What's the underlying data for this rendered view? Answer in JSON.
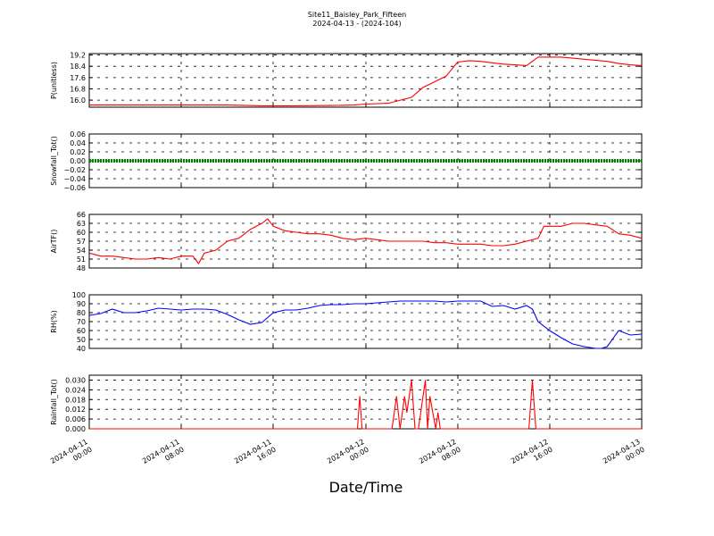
{
  "title": "Site11_Baisley_Park_Fifteen",
  "subtitle": "2024-04-13 - (2024-104)",
  "xlabel": "Date/Time",
  "x_ticks": [
    "2024-04-11\n00:00",
    "2024-04-11\n08:00",
    "2024-04-11\n16:00",
    "2024-04-12\n00:00",
    "2024-04-12\n08:00",
    "2024-04-12\n16:00",
    "2024-04-13\n00:00"
  ],
  "chart_data": [
    {
      "type": "line",
      "ylabel": "P(unitless)",
      "ylim": [
        15.5,
        19.3
      ],
      "yticks": [
        "16.0",
        "16.8",
        "17.6",
        "18.4",
        "19.2"
      ],
      "color": "#ff0000",
      "x_hours": [
        0,
        6,
        12,
        15,
        18,
        21,
        23,
        24,
        26,
        28,
        29,
        31,
        32,
        33,
        34,
        35,
        36,
        37,
        38,
        39,
        41,
        43,
        45,
        46,
        47,
        48
      ],
      "values": [
        15.65,
        15.65,
        15.65,
        15.6,
        15.6,
        15.62,
        15.65,
        15.72,
        15.78,
        16.2,
        16.9,
        17.7,
        18.7,
        18.8,
        18.75,
        18.65,
        18.55,
        18.5,
        18.45,
        19.05,
        19.05,
        18.9,
        18.75,
        18.6,
        18.5,
        18.45
      ]
    },
    {
      "type": "line",
      "ylabel": "Snowfall_Tot()",
      "ylim": [
        -0.06,
        0.06
      ],
      "yticks": [
        "−0.06",
        "−0.04",
        "−0.02",
        "0.00",
        "0.02",
        "0.04",
        "0.06"
      ],
      "color": "#008000",
      "x_hours": [
        0,
        48
      ],
      "values": [
        0.0,
        0.0
      ]
    },
    {
      "type": "line",
      "ylabel": "AirTF()",
      "ylim": [
        48,
        66
      ],
      "yticks": [
        "48",
        "51",
        "54",
        "57",
        "60",
        "63",
        "66"
      ],
      "color": "#ff0000",
      "x_hours": [
        0,
        1,
        2,
        3,
        4,
        5,
        6,
        7,
        8,
        9,
        9.5,
        10,
        11,
        12,
        13,
        14,
        15,
        15.5,
        16,
        17,
        18,
        19,
        20,
        21,
        22,
        23,
        24,
        25,
        26,
        27,
        28,
        29,
        30,
        31,
        32,
        33,
        34,
        35,
        36,
        37,
        38,
        39,
        39.5,
        40,
        41,
        42,
        43,
        44,
        45,
        46,
        47,
        48
      ],
      "values": [
        53,
        52,
        52,
        51.5,
        51,
        51,
        51.5,
        51,
        52,
        52,
        49.5,
        53,
        54,
        57,
        58,
        61,
        63,
        64.5,
        62,
        60.5,
        60,
        59.5,
        59.5,
        59,
        58,
        57.5,
        58,
        57.5,
        57,
        57,
        57,
        57,
        56.5,
        56.5,
        56,
        56,
        56,
        55.5,
        55.5,
        56,
        57,
        58,
        62,
        62,
        62,
        63,
        63,
        62.5,
        62,
        59.5,
        59,
        58
      ]
    },
    {
      "type": "line",
      "ylabel": "RH(%)",
      "ylim": [
        40,
        100
      ],
      "yticks": [
        "40",
        "50",
        "60",
        "70",
        "80",
        "90",
        "100"
      ],
      "color": "#0000ff",
      "x_hours": [
        0,
        1,
        2,
        3,
        4,
        5,
        6,
        7,
        8,
        9,
        10,
        11,
        12,
        13,
        14,
        15,
        16,
        17,
        18,
        19,
        20,
        21,
        22,
        23,
        24,
        25,
        26,
        27,
        28,
        29,
        30,
        31,
        32,
        33,
        34,
        35,
        36,
        37,
        38,
        38.5,
        39,
        40,
        41,
        42,
        43,
        44,
        44.5,
        45,
        46,
        47,
        48
      ],
      "values": [
        77,
        79,
        84,
        80,
        80,
        82,
        85,
        84,
        83,
        84,
        84,
        83,
        78,
        72,
        67,
        69,
        80,
        83,
        83,
        85,
        88,
        89,
        89,
        90,
        90,
        91,
        92,
        93,
        93,
        93,
        93,
        92,
        93,
        93,
        93,
        87,
        88,
        84,
        88,
        84,
        70,
        60,
        52,
        45,
        42,
        40,
        40,
        42,
        60,
        55,
        56
      ]
    },
    {
      "type": "line",
      "ylabel": "Rainfall_Tot()",
      "ylim": [
        0.0,
        0.033
      ],
      "yticks": [
        "0.000",
        "0.006",
        "0.012",
        "0.018",
        "0.024",
        "0.030"
      ],
      "color": "#ff0000",
      "x_hours": [
        0,
        23.3,
        23.5,
        23.7,
        26.3,
        26.7,
        27.0,
        27.2,
        27.4,
        27.6,
        28.0,
        28.3,
        28.6,
        29.2,
        29.4,
        29.6,
        30.1,
        30.3,
        30.5,
        31.0,
        38.2,
        38.5,
        38.8,
        48
      ],
      "values": [
        0.0,
        0.0,
        0.02,
        0.0,
        0.0,
        0.02,
        0.0,
        0.01,
        0.02,
        0.01,
        0.03,
        0.0,
        0.0,
        0.03,
        0.0,
        0.02,
        0.0,
        0.01,
        0.0,
        0.0,
        0.0,
        0.03,
        0.0,
        0.0
      ]
    }
  ]
}
